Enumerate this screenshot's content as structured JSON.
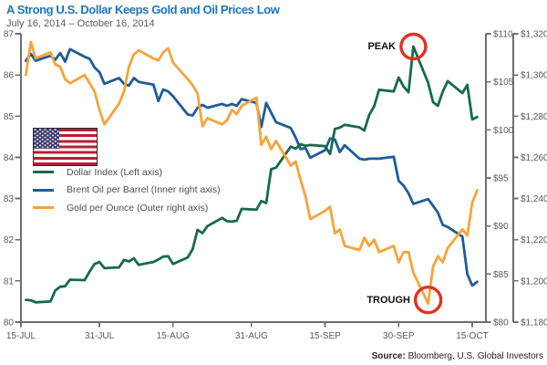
{
  "chart_data": {
    "type": "line",
    "title": "A Strong U.S. Dollar Keeps Gold and Oil Prices Low",
    "subtitle": "July 16, 2014 – October 16, 2014",
    "grid": false,
    "legend_position": "middle-left",
    "background": "#ffffff",
    "x": {
      "start_date": "2014-07-15",
      "end_date": "2014-10-15",
      "tick_dates": [
        "2014-07-15",
        "2014-07-31",
        "2014-08-15",
        "2014-08-31",
        "2014-09-15",
        "2014-09-30",
        "2014-10-15"
      ],
      "tick_labels": [
        "15-JUL",
        "31-JUL",
        "15-AUG",
        "31-AUG",
        "15-SEP",
        "30-SEP",
        "15-OCT"
      ]
    },
    "axes": {
      "left": {
        "min": 80,
        "max": 87,
        "tick_values": [
          87,
          86,
          85,
          84,
          83,
          82,
          81,
          80
        ],
        "tick_labels": [
          "87",
          "86",
          "85",
          "84",
          "83",
          "82",
          "81",
          "80"
        ]
      },
      "inner_right": {
        "min": 80,
        "max": 110,
        "tick_values": [
          110,
          105,
          100,
          95,
          90,
          85,
          80
        ],
        "tick_labels": [
          "$110",
          "$105",
          "$100",
          "$95",
          "$90",
          "$85",
          "$80"
        ]
      },
      "outer_right": {
        "min": 1180,
        "max": 1320,
        "tick_values": [
          1320,
          1300,
          1280,
          1260,
          1240,
          1220,
          1200,
          1180
        ],
        "tick_labels": [
          "$1,320",
          "$1,300",
          "$1,280",
          "$1,260",
          "$1,240",
          "$1,220",
          "$1,200",
          "$1,180"
        ]
      }
    },
    "dates": [
      "2014-07-16",
      "2014-07-17",
      "2014-07-18",
      "2014-07-21",
      "2014-07-22",
      "2014-07-23",
      "2014-07-24",
      "2014-07-25",
      "2014-07-28",
      "2014-07-29",
      "2014-07-30",
      "2014-07-31",
      "2014-08-01",
      "2014-08-04",
      "2014-08-05",
      "2014-08-06",
      "2014-08-07",
      "2014-08-08",
      "2014-08-11",
      "2014-08-12",
      "2014-08-13",
      "2014-08-14",
      "2014-08-15",
      "2014-08-18",
      "2014-08-19",
      "2014-08-20",
      "2014-08-21",
      "2014-08-22",
      "2014-08-25",
      "2014-08-26",
      "2014-08-27",
      "2014-08-28",
      "2014-08-29",
      "2014-09-01",
      "2014-09-02",
      "2014-09-03",
      "2014-09-04",
      "2014-09-05",
      "2014-09-08",
      "2014-09-09",
      "2014-09-10",
      "2014-09-11",
      "2014-09-12",
      "2014-09-15",
      "2014-09-16",
      "2014-09-17",
      "2014-09-18",
      "2014-09-19",
      "2014-09-22",
      "2014-09-23",
      "2014-09-24",
      "2014-09-25",
      "2014-09-26",
      "2014-09-29",
      "2014-09-30",
      "2014-10-01",
      "2014-10-02",
      "2014-10-03",
      "2014-10-06",
      "2014-10-07",
      "2014-10-08",
      "2014-10-09",
      "2014-10-10",
      "2014-10-13",
      "2014-10-14",
      "2014-10-15",
      "2014-10-16"
    ],
    "series": [
      {
        "id": "dollar_index",
        "name": "Dollar Index (Left axis)",
        "axis": "left",
        "color": "#17694E",
        "values": [
          80.54,
          80.53,
          80.48,
          80.5,
          80.77,
          80.86,
          80.87,
          81.03,
          81.02,
          81.23,
          81.41,
          81.46,
          81.31,
          81.33,
          81.51,
          81.47,
          81.55,
          81.39,
          81.46,
          81.52,
          81.59,
          81.6,
          81.41,
          81.57,
          81.77,
          82.24,
          82.16,
          82.33,
          82.53,
          82.45,
          82.44,
          82.46,
          82.75,
          82.73,
          82.94,
          82.89,
          83.71,
          83.75,
          84.26,
          84.21,
          84.32,
          84.28,
          84.3,
          84.27,
          84.08,
          84.69,
          84.72,
          84.79,
          84.73,
          84.65,
          85.03,
          85.24,
          85.64,
          85.6,
          85.94,
          85.72,
          85.58,
          86.69,
          85.81,
          85.34,
          85.25,
          85.6,
          85.85,
          85.56,
          85.76,
          84.92,
          84.98
        ]
      },
      {
        "id": "brent_oil",
        "name": "Brent Oil per Barrel (Inner right axis)",
        "axis": "inner_right",
        "color": "#1E5C96",
        "values": [
          107.2,
          107.9,
          107.2,
          107.7,
          107.3,
          108.0,
          107.1,
          108.4,
          107.6,
          107.4,
          106.5,
          106.0,
          104.8,
          105.4,
          104.8,
          104.6,
          105.4,
          105.0,
          104.7,
          103.0,
          104.2,
          104.0,
          103.5,
          101.6,
          101.5,
          102.3,
          102.6,
          102.3,
          102.7,
          102.5,
          102.7,
          102.5,
          103.2,
          102.8,
          100.3,
          102.8,
          101.8,
          100.8,
          100.2,
          99.2,
          98.0,
          98.1,
          97.1,
          97.9,
          99.1,
          99.0,
          97.7,
          98.4,
          97.0,
          96.9,
          97.0,
          97.0,
          97.0,
          97.2,
          94.7,
          94.2,
          93.4,
          92.3,
          92.8,
          92.1,
          91.4,
          90.1,
          89.9,
          88.9,
          85.0,
          83.8,
          84.2
        ]
      },
      {
        "id": "gold",
        "name": "Gold per Ounce (Outer right axis)",
        "axis": "outer_right",
        "color": "#F8A33C",
        "values": [
          1300,
          1316,
          1308,
          1311,
          1305,
          1304,
          1298,
          1296,
          1300,
          1296,
          1292,
          1283,
          1276,
          1286,
          1292,
          1304,
          1310,
          1312,
          1308,
          1307,
          1311,
          1313,
          1306,
          1298,
          1295,
          1291,
          1275,
          1279,
          1276,
          1278,
          1283,
          1281,
          1285,
          1289,
          1266,
          1270,
          1264,
          1268,
          1256,
          1258,
          1249,
          1241,
          1230,
          1234,
          1236,
          1223,
          1225,
          1217,
          1215,
          1221,
          1217,
          1220,
          1214,
          1217,
          1209,
          1214,
          1214,
          1204,
          1189,
          1207,
          1212,
          1209,
          1216,
          1225,
          1222,
          1238,
          1244
        ]
      }
    ],
    "annotations": {
      "circle_color": "#E4301E",
      "peak": {
        "label": "PEAK",
        "series": "dollar_index",
        "date": "2014-10-03"
      },
      "trough": {
        "label": "TROUGH",
        "series": "gold",
        "date": "2014-10-06"
      }
    }
  },
  "legend": {
    "items": [
      {
        "label": "Dollar Index (Left axis)"
      },
      {
        "label": "Brent Oil per Barrel (Inner right axis)"
      },
      {
        "label": "Gold per Ounce (Outer right axis)"
      }
    ]
  },
  "footer": {
    "source_label": "Source:",
    "source_text": " Bloomberg, U.S. Global Investors"
  }
}
